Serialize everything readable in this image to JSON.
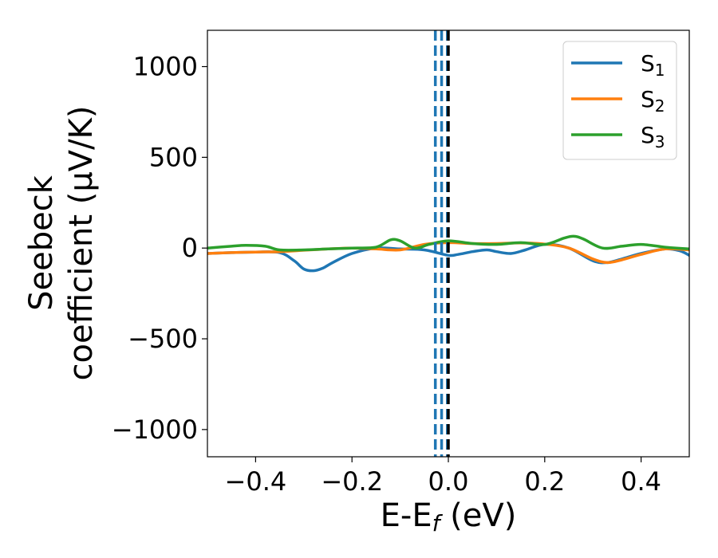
{
  "chart_data": {
    "type": "line",
    "xlabel": {
      "main": "E-E",
      "sub": "f",
      "unit": " (eV)"
    },
    "ylabel": {
      "line1": "Seebeck",
      "line2": "coefficient  (μV/K)"
    },
    "xlim": [
      -0.5,
      0.5
    ],
    "ylim": [
      -1150,
      1200
    ],
    "xticks": [
      -0.4,
      -0.2,
      0.0,
      0.2,
      0.4
    ],
    "xtick_labels": [
      "−0.4",
      "−0.2",
      "0.0",
      "0.2",
      "0.4"
    ],
    "yticks": [
      -1000,
      -500,
      0,
      500,
      1000
    ],
    "ytick_labels": [
      "−1000",
      "−500",
      "0",
      "500",
      "1000"
    ],
    "grid": false,
    "legend_position": "top-right",
    "series": [
      {
        "name": "S",
        "name_sub": "1",
        "color": "#1f77b4",
        "x": [
          -0.5,
          -0.45,
          -0.4,
          -0.35,
          -0.32,
          -0.3,
          -0.28,
          -0.26,
          -0.24,
          -0.2,
          -0.15,
          -0.1,
          -0.05,
          0.0,
          0.02,
          0.05,
          0.08,
          0.1,
          0.13,
          0.16,
          0.2,
          0.25,
          0.3,
          0.33,
          0.36,
          0.4,
          0.45,
          0.48,
          0.5
        ],
        "y": [
          -30,
          -25,
          -22,
          -25,
          -70,
          -115,
          -125,
          -110,
          -80,
          -30,
          0,
          -5,
          -10,
          -40,
          -35,
          -20,
          -10,
          -20,
          -30,
          -10,
          20,
          0,
          -70,
          -80,
          -60,
          -30,
          -5,
          -15,
          -40
        ]
      },
      {
        "name": "S",
        "name_sub": "2",
        "color": "#ff7f0e",
        "x": [
          -0.5,
          -0.45,
          -0.4,
          -0.35,
          -0.3,
          -0.25,
          -0.2,
          -0.15,
          -0.1,
          -0.05,
          0.0,
          0.05,
          0.1,
          0.15,
          0.2,
          0.25,
          0.3,
          0.33,
          0.36,
          0.4,
          0.45,
          0.5
        ],
        "y": [
          -30,
          -25,
          -22,
          -20,
          -12,
          -5,
          0,
          -5,
          -10,
          20,
          30,
          25,
          25,
          28,
          22,
          0,
          -60,
          -80,
          -65,
          -35,
          -5,
          -10
        ]
      },
      {
        "name": "S",
        "name_sub": "3",
        "color": "#2ca02c",
        "x": [
          -0.5,
          -0.45,
          -0.42,
          -0.38,
          -0.35,
          -0.3,
          -0.25,
          -0.2,
          -0.15,
          -0.12,
          -0.1,
          -0.07,
          -0.04,
          0.0,
          0.05,
          0.1,
          0.15,
          0.2,
          0.24,
          0.26,
          0.28,
          0.32,
          0.36,
          0.4,
          0.45,
          0.5
        ],
        "y": [
          0,
          10,
          15,
          10,
          -10,
          -10,
          -5,
          0,
          5,
          45,
          40,
          0,
          20,
          40,
          25,
          20,
          30,
          20,
          55,
          65,
          50,
          0,
          10,
          20,
          5,
          -5
        ]
      }
    ],
    "vlines": [
      {
        "x": -0.027,
        "color": "#1f77b4",
        "style": "dashed"
      },
      {
        "x": -0.014,
        "color": "#1f77b4",
        "style": "dashed"
      },
      {
        "x": -0.002,
        "color": "#1f77b4",
        "style": "dashed"
      },
      {
        "x": 0.0,
        "color": "#000000",
        "style": "dashed"
      }
    ]
  }
}
